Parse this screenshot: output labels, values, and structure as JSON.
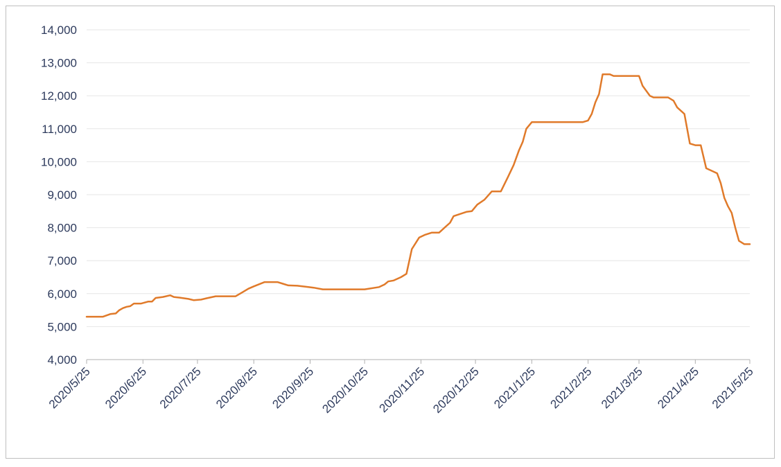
{
  "chart_data": {
    "type": "line",
    "title": "",
    "xlabel": "",
    "ylabel": "",
    "ylim": [
      4000,
      14000
    ],
    "xlim": [
      "2020-05-25",
      "2021-05-25"
    ],
    "grid": "horizontal",
    "legend": "none",
    "yticks": [
      "4,000",
      "5,000",
      "6,000",
      "7,000",
      "8,000",
      "9,000",
      "10,000",
      "11,000",
      "12,000",
      "13,000",
      "14,000"
    ],
    "ytick_values": [
      4000,
      5000,
      6000,
      7000,
      8000,
      9000,
      10000,
      11000,
      12000,
      13000,
      14000
    ],
    "xticks": [
      "2020/5/25",
      "2020/6/25",
      "2020/7/25",
      "2020/8/25",
      "2020/9/25",
      "2020/10/25",
      "2020/11/25",
      "2020/12/25",
      "2021/1/25",
      "2021/2/25",
      "2021/3/25",
      "2021/4/25",
      "2021/5/25"
    ],
    "xtick_dates": [
      "2020-05-25",
      "2020-06-25",
      "2020-07-25",
      "2020-08-25",
      "2020-09-25",
      "2020-10-25",
      "2020-11-25",
      "2020-12-25",
      "2021-01-25",
      "2021-02-25",
      "2021-03-25",
      "2021-04-25",
      "2021-05-25"
    ],
    "series": [
      {
        "color": "#e07a2a",
        "x": [
          "2020-05-25",
          "2020-06-03",
          "2020-06-07",
          "2020-06-10",
          "2020-06-12",
          "2020-06-14",
          "2020-06-16",
          "2020-06-18",
          "2020-06-20",
          "2020-06-24",
          "2020-06-28",
          "2020-06-30",
          "2020-07-02",
          "2020-07-06",
          "2020-07-10",
          "2020-07-12",
          "2020-07-15",
          "2020-07-20",
          "2020-07-23",
          "2020-07-27",
          "2020-07-30",
          "2020-08-04",
          "2020-08-15",
          "2020-08-19",
          "2020-08-22",
          "2020-08-25",
          "2020-08-31",
          "2020-09-07",
          "2020-09-10",
          "2020-09-13",
          "2020-09-18",
          "2020-09-24",
          "2020-09-27",
          "2020-10-02",
          "2020-10-25",
          "2020-11-02",
          "2020-11-05",
          "2020-11-07",
          "2020-11-10",
          "2020-11-14",
          "2020-11-17",
          "2020-11-20",
          "2020-11-24",
          "2020-11-27",
          "2020-12-01",
          "2020-12-05",
          "2020-12-08",
          "2020-12-11",
          "2020-12-13",
          "2020-12-20",
          "2020-12-23",
          "2020-12-26",
          "2020-12-30",
          "2021-01-03",
          "2021-01-08",
          "2021-01-12",
          "2021-01-15",
          "2021-01-18",
          "2021-01-20",
          "2021-01-22",
          "2021-01-24",
          "2021-01-25",
          "2021-02-22",
          "2021-02-25",
          "2021-02-27",
          "2021-03-01",
          "2021-03-03",
          "2021-03-05",
          "2021-03-09",
          "2021-03-11",
          "2021-03-25",
          "2021-03-27",
          "2021-03-29",
          "2021-03-31",
          "2021-04-02",
          "2021-04-05",
          "2021-04-10",
          "2021-04-13",
          "2021-04-15",
          "2021-04-19",
          "2021-04-22",
          "2021-04-25",
          "2021-04-28",
          "2021-05-01",
          "2021-05-03",
          "2021-05-07",
          "2021-05-09",
          "2021-05-11",
          "2021-05-13",
          "2021-05-15",
          "2021-05-17",
          "2021-05-19",
          "2021-05-22",
          "2021-05-25"
        ],
        "y": [
          5300,
          5300,
          5380,
          5400,
          5500,
          5560,
          5600,
          5620,
          5700,
          5700,
          5760,
          5760,
          5870,
          5900,
          5950,
          5900,
          5880,
          5840,
          5800,
          5820,
          5860,
          5920,
          5920,
          6050,
          6150,
          6220,
          6350,
          6350,
          6300,
          6250,
          6240,
          6200,
          6180,
          6130,
          6130,
          6200,
          6280,
          6370,
          6400,
          6500,
          6600,
          7350,
          7700,
          7780,
          7850,
          7850,
          8000,
          8150,
          8350,
          8480,
          8500,
          8700,
          8850,
          9100,
          9100,
          9550,
          9900,
          10350,
          10600,
          11000,
          11130,
          11200,
          11200,
          11250,
          11450,
          11800,
          12050,
          12650,
          12650,
          12600,
          12600,
          12300,
          12150,
          12000,
          11950,
          11950,
          11950,
          11850,
          11650,
          11450,
          10550,
          10500,
          10500,
          9800,
          9750,
          9650,
          9350,
          8900,
          8650,
          8450,
          8000,
          7600,
          7500,
          7500
        ]
      }
    ]
  }
}
